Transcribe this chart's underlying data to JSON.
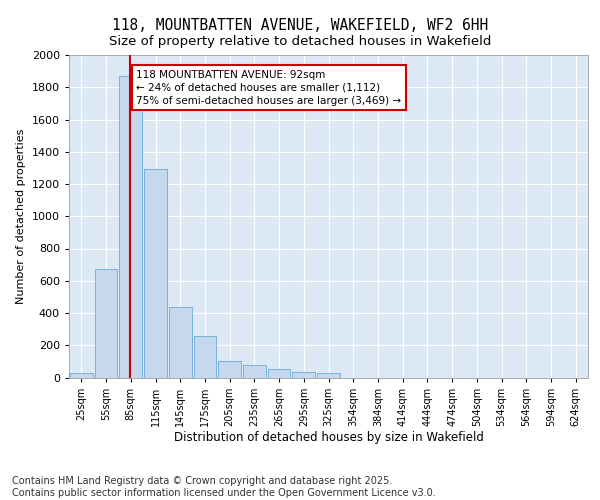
{
  "title_line1": "118, MOUNTBATTEN AVENUE, WAKEFIELD, WF2 6HH",
  "title_line2": "Size of property relative to detached houses in Wakefield",
  "xlabel": "Distribution of detached houses by size in Wakefield",
  "ylabel": "Number of detached properties",
  "categories": [
    "25sqm",
    "55sqm",
    "85sqm",
    "115sqm",
    "145sqm",
    "175sqm",
    "205sqm",
    "235sqm",
    "265sqm",
    "295sqm",
    "325sqm",
    "354sqm",
    "384sqm",
    "414sqm",
    "444sqm",
    "474sqm",
    "504sqm",
    "534sqm",
    "564sqm",
    "594sqm",
    "624sqm"
  ],
  "values": [
    30,
    670,
    1870,
    1290,
    440,
    255,
    100,
    75,
    55,
    35,
    30,
    0,
    0,
    0,
    0,
    0,
    0,
    0,
    0,
    0,
    0
  ],
  "bar_color": "#c5d8ee",
  "bar_edge_color": "#6aaad4",
  "vline_x_index": 1.95,
  "vline_color": "#cc0000",
  "annotation_text": "118 MOUNTBATTEN AVENUE: 92sqm\n← 24% of detached houses are smaller (1,112)\n75% of semi-detached houses are larger (3,469) →",
  "annotation_box_facecolor": "#ffffff",
  "annotation_box_edgecolor": "#cc0000",
  "ylim": [
    0,
    2000
  ],
  "yticks": [
    0,
    200,
    400,
    600,
    800,
    1000,
    1200,
    1400,
    1600,
    1800,
    2000
  ],
  "bg_color": "#dde8f5",
  "grid_color": "#ffffff",
  "footnote": "Contains HM Land Registry data © Crown copyright and database right 2025.\nContains public sector information licensed under the Open Government Licence v3.0.",
  "title_fontsize": 10.5,
  "subtitle_fontsize": 9.5,
  "ylabel_fontsize": 8,
  "xlabel_fontsize": 8.5,
  "footnote_fontsize": 7,
  "tick_fontsize": 8,
  "xtick_fontsize": 7,
  "annotation_fontsize": 7.5
}
